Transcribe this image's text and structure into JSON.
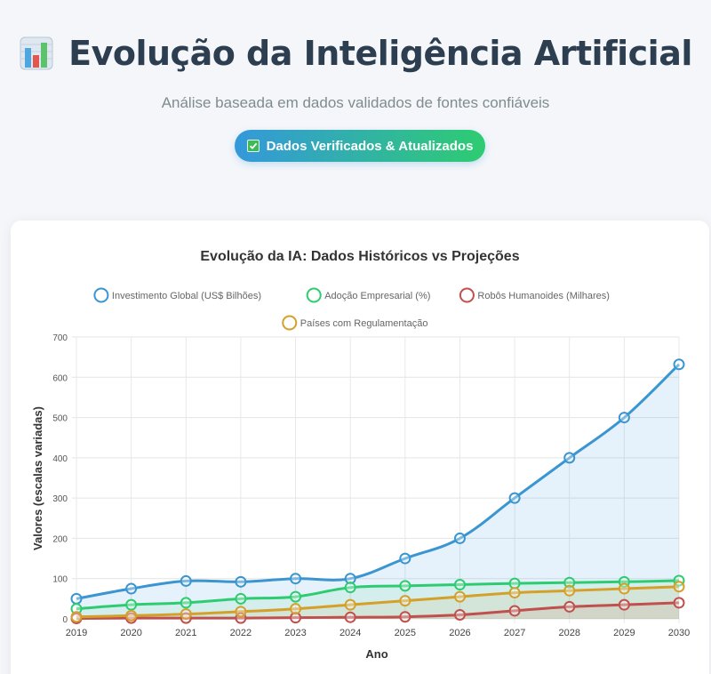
{
  "header": {
    "title": "Evolução da Inteligência Artificial",
    "subtitle": "Análise baseada em dados validados de fontes confiáveis",
    "badge_label": "Dados Verificados & Atualizados",
    "title_icon": "bar-chart-icon",
    "badge_icon": "check-icon"
  },
  "colors": {
    "accent_blue": "#3498db",
    "accent_green": "#2ecc71",
    "title_color": "#2c3e50"
  },
  "chart_data": {
    "type": "line",
    "title": "Evolução da IA: Dados Históricos vs Projeções",
    "xlabel": "Ano",
    "ylabel": "Valores (escalas variadas)",
    "ylim": [
      0,
      700
    ],
    "yticks": [
      0,
      100,
      200,
      300,
      400,
      500,
      600,
      700
    ],
    "grid": true,
    "legend_position": "top",
    "categories": [
      "2019",
      "2020",
      "2021",
      "2022",
      "2023",
      "2024",
      "2025",
      "2026",
      "2027",
      "2028",
      "2029",
      "2030"
    ],
    "series": [
      {
        "name": "Investimento Global (US$ Bilhões)",
        "color": "#3a95d0",
        "fill": true,
        "values": [
          50,
          75,
          94,
          92,
          100,
          100,
          150,
          200,
          300,
          400,
          500,
          632
        ]
      },
      {
        "name": "Adoção Empresarial (%)",
        "color": "#2ecc71",
        "fill": true,
        "values": [
          25,
          35,
          40,
          50,
          55,
          78,
          82,
          85,
          88,
          90,
          92,
          95
        ]
      },
      {
        "name": "Robôs Humanoides (Milhares)",
        "color": "#c0504d",
        "fill": true,
        "values": [
          1,
          2,
          2,
          2,
          3,
          4,
          5,
          10,
          20,
          30,
          35,
          40
        ]
      },
      {
        "name": "Países com Regulamentação",
        "color": "#d4a02a",
        "fill": true,
        "values": [
          5,
          8,
          12,
          18,
          25,
          35,
          45,
          55,
          65,
          70,
          75,
          80
        ]
      }
    ]
  }
}
